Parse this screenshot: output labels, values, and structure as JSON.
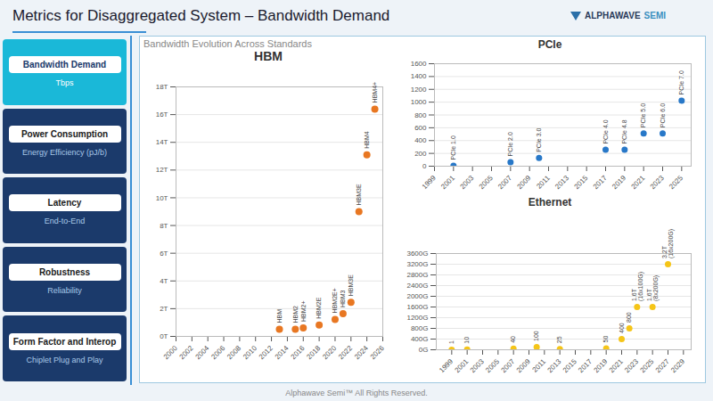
{
  "title": "Metrics for Disaggregated System – Bandwidth Demand",
  "annotations": {
    "logo": [
      "ALPHAWAVE",
      "SEMI"
    ],
    "menu": [
      {
        "label": "Bandwidth Demand",
        "sublabel": "Tbps"
      },
      {
        "label": "Power Consumption",
        "sublabel": "Energy Efficiency (pJ/b)"
      },
      {
        "label": "Latency",
        "sublabel": "End-to-End"
      },
      {
        "label": "Robustness",
        "sublabel": "Reliability"
      },
      {
        "label": "Form Factor and Interop",
        "sublabel": "Chiplet Plug and Play"
      }
    ],
    "footer": "Alphawave Semi™ All Rights Reserved."
  },
  "chart_data": [
    {
      "type": "scatter",
      "title": "HBM",
      "subtitle": "Bandwidth Evolution Across Standards",
      "x": [
        2013,
        2015,
        2016,
        2018,
        2020,
        2021,
        2022,
        2023,
        2024,
        2025
      ],
      "values": [
        0.512,
        0.512,
        0.614,
        0.819,
        1.229,
        1.638,
        2.458,
        9.0,
        13.1,
        16.4
      ],
      "annotations": [
        "HBM",
        "HBM2",
        "HBM2+",
        "HBM2E",
        "HBM2E+",
        "HBM3",
        "HBM3E",
        "HBM3E",
        "HBM4",
        "HBM4+"
      ],
      "color": "#e87722",
      "xlim": [
        2000,
        2026
      ],
      "xticks": [
        2000,
        2002,
        2004,
        2006,
        2008,
        2010,
        2012,
        2014,
        2016,
        2018,
        2020,
        2022,
        2024,
        2026
      ],
      "ylim": [
        0,
        18
      ],
      "yticks": [
        {
          "value": 0,
          "label": "0T"
        },
        {
          "value": 2,
          "label": "2T"
        },
        {
          "value": 4,
          "label": "4T"
        },
        {
          "value": 6,
          "label": "6T"
        },
        {
          "value": 8,
          "label": "8T"
        },
        {
          "value": 10,
          "label": "10T"
        },
        {
          "value": 12,
          "label": "12T"
        },
        {
          "value": 14,
          "label": "14T"
        },
        {
          "value": 16,
          "label": "16T"
        },
        {
          "value": 18,
          "label": "18T"
        }
      ],
      "grid": "y"
    },
    {
      "type": "scatter",
      "title": "PCIe",
      "x": [
        2001,
        2007,
        2010,
        2017,
        2019,
        2021,
        2023,
        2025
      ],
      "values": [
        8,
        64,
        128,
        256,
        256,
        512,
        512,
        1024
      ],
      "annotations": [
        "PCIe 1.0",
        "PCIe 2.0",
        "PCIe 3.0",
        "PCIe 4.0",
        "PCIe 4.8",
        "PCIe 5.0",
        "PCIe 6.0",
        "PCIe 7.0"
      ],
      "color": "#2878c8",
      "xlim": [
        1999,
        2026
      ],
      "xticks": [
        1999,
        2001,
        2003,
        2005,
        2007,
        2009,
        2011,
        2013,
        2015,
        2017,
        2019,
        2021,
        2023,
        2025
      ],
      "ylim": [
        0,
        1600
      ],
      "yticks": [
        0,
        200,
        400,
        600,
        800,
        1000,
        1200,
        1400,
        1600
      ],
      "grid": "y"
    },
    {
      "type": "scatter",
      "title": "Ethernet",
      "x": [
        1999,
        2001,
        2007,
        2010,
        2013,
        2019,
        2021,
        2022,
        2023,
        2025,
        2027
      ],
      "values": [
        1,
        10,
        40,
        100,
        25,
        50,
        400,
        800,
        1600,
        1600,
        3200
      ],
      "annotations": [
        "1",
        "10",
        "40",
        "100",
        "25",
        "50",
        "400",
        "800",
        "1.6T\n(16x100G)",
        "1.6T\n(8x200G)",
        "3.2T\n(16x200G)"
      ],
      "color": "#f5c518",
      "xlim": [
        1997,
        2030
      ],
      "xticks": [
        1999,
        2001,
        2003,
        2005,
        2007,
        2009,
        2011,
        2013,
        2015,
        2017,
        2019,
        2021,
        2023,
        2025,
        2027,
        2029
      ],
      "ylim": [
        0,
        3600
      ],
      "yticks": [
        {
          "value": 0,
          "label": "0G"
        },
        {
          "value": 400,
          "label": "400G"
        },
        {
          "value": 800,
          "label": "800G"
        },
        {
          "value": 1200,
          "label": "1200G"
        },
        {
          "value": 1600,
          "label": "1600G"
        },
        {
          "value": 2000,
          "label": "2000G"
        },
        {
          "value": 2400,
          "label": "2400G"
        },
        {
          "value": 2800,
          "label": "2800G"
        },
        {
          "value": 3200,
          "label": "3200G"
        },
        {
          "value": 3600,
          "label": "3600G"
        }
      ],
      "grid": "y"
    }
  ]
}
